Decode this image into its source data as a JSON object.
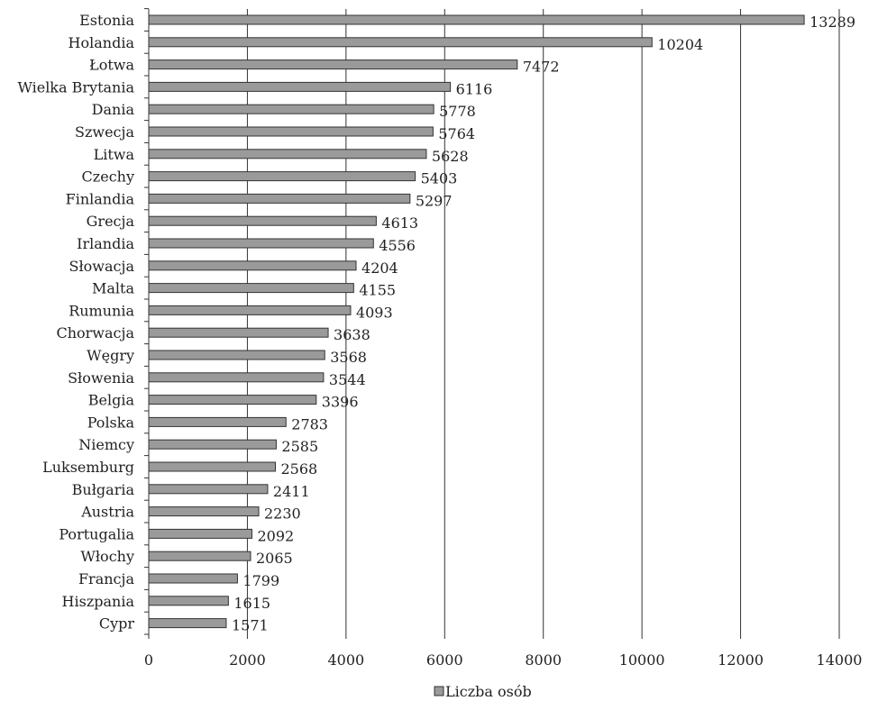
{
  "chart_data": {
    "type": "bar",
    "orientation": "horizontal",
    "title": "",
    "xlabel": "",
    "ylabel": "",
    "xlim": [
      0,
      14000
    ],
    "x_ticks": [
      0,
      2000,
      4000,
      6000,
      8000,
      10000,
      12000,
      14000
    ],
    "grid": "vertical",
    "legend": {
      "position": "bottom",
      "entries": [
        "Liczba osób"
      ]
    },
    "categories": [
      "Estonia",
      "Holandia",
      "Łotwa",
      "Wielka Brytania",
      "Dania",
      "Szwecja",
      "Litwa",
      "Czechy",
      "Finlandia",
      "Grecja",
      "Irlandia",
      "Słowacja",
      "Malta",
      "Rumunia",
      "Chorwacja",
      "Węgry",
      "Słowenia",
      "Belgia",
      "Polska",
      "Niemcy",
      "Luksemburg",
      "Bułgaria",
      "Austria",
      "Portugalia",
      "Włochy",
      "Francja",
      "Hiszpania",
      "Cypr"
    ],
    "series": [
      {
        "name": "Liczba osób",
        "color": "#9a9a9a",
        "values": [
          13289,
          10204,
          7472,
          6116,
          5778,
          5764,
          5628,
          5403,
          5297,
          4613,
          4556,
          4204,
          4155,
          4093,
          3638,
          3568,
          3544,
          3396,
          2783,
          2585,
          2568,
          2411,
          2230,
          2092,
          2065,
          1799,
          1615,
          1571
        ]
      }
    ]
  }
}
